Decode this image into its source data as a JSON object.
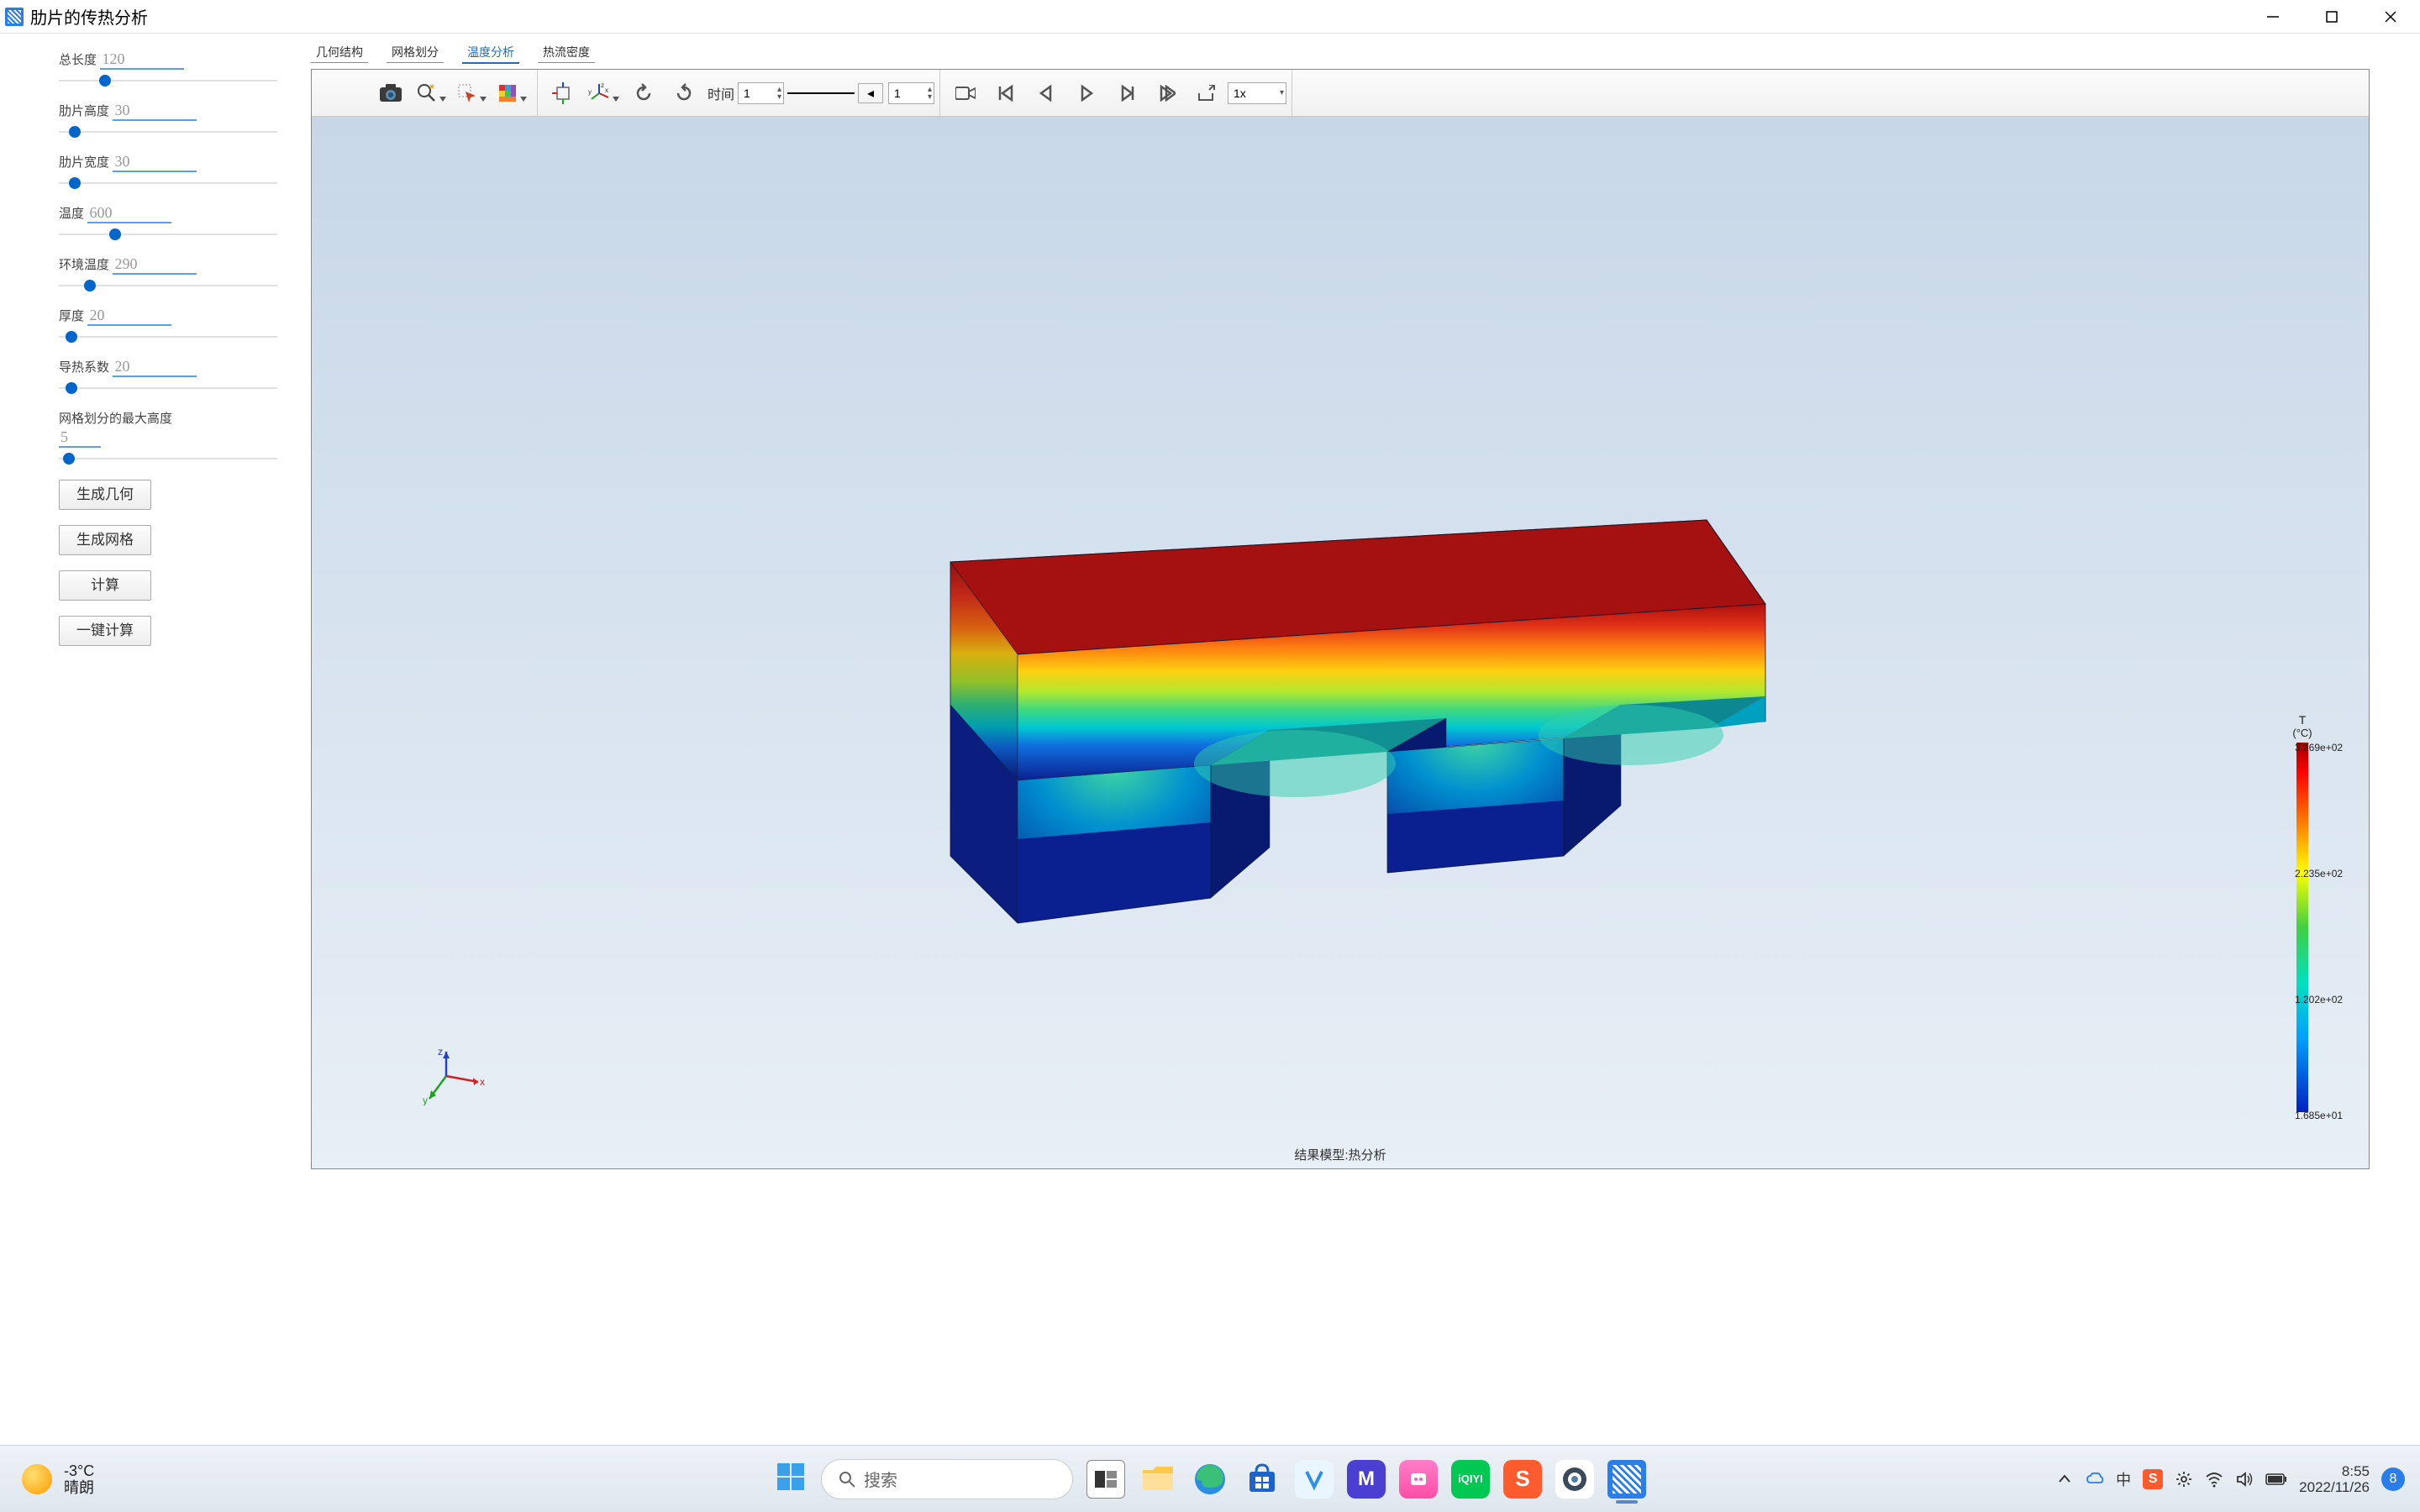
{
  "window": {
    "title": "肋片的传热分析",
    "accent": "#2b7de9"
  },
  "win_controls": {
    "min": "minimize",
    "max": "maximize",
    "close": "close"
  },
  "params": [
    {
      "label": "总长度",
      "value": "120",
      "thumb": 48
    },
    {
      "label": "肋片高度",
      "value": "30",
      "thumb": 12
    },
    {
      "label": "肋片宽度",
      "value": "30",
      "thumb": 12
    },
    {
      "label": "温度",
      "value": "600",
      "thumb": 60
    },
    {
      "label": "环境温度",
      "value": "290",
      "thumb": 30
    },
    {
      "label": "厚度",
      "value": "20",
      "thumb": 8
    },
    {
      "label": "导热系数",
      "value": "20",
      "thumb": 8
    },
    {
      "label": "网格划分的最大高度",
      "value": "5",
      "thumb": 5,
      "long": true
    }
  ],
  "buttons": {
    "gen_geometry": "生成几何",
    "gen_mesh": "生成网格",
    "compute": "计算",
    "one_click": "一键计算"
  },
  "tabs": [
    {
      "label": "几何结构",
      "active": false
    },
    {
      "label": "网格划分",
      "active": false
    },
    {
      "label": "温度分析",
      "active": true
    },
    {
      "label": "热流密度",
      "active": false
    }
  ],
  "toolbar": {
    "group_view": [
      "camera",
      "zoom-fit",
      "select",
      "color-cube"
    ],
    "group_orient": [
      "box-axes",
      "axes-xyz",
      "rotate-ccw",
      "rotate-cw"
    ],
    "time_label": "时间",
    "time_value": "1",
    "line_value": "1",
    "group_play": [
      "record",
      "skip-first",
      "frame-prev",
      "play",
      "frame-next",
      "skip-last",
      "export"
    ],
    "speed_value": "1x"
  },
  "canvas": {
    "bg_top": "#c7d7e8",
    "bg_bottom": "#e8eff6",
    "result_label": "结果模型:热分析",
    "axes": {
      "x": "x",
      "y": "y",
      "z": "z",
      "x_color": "#d02020",
      "y_color": "#20a020",
      "z_color": "#2040d0"
    }
  },
  "model": {
    "gradient_colors": [
      "#a00000",
      "#e02010",
      "#ff7000",
      "#ffd000",
      "#d0f000",
      "#60e060",
      "#00d0b0",
      "#00a0ff",
      "#1030c0",
      "#0b1a80"
    ],
    "outline": "#102040"
  },
  "legend": {
    "title": "T",
    "unit": "(°C)",
    "ticks": [
      {
        "label": "3.269e+02",
        "pos": 0
      },
      {
        "label": "2.235e+02",
        "pos": 150
      },
      {
        "label": "1.202e+02",
        "pos": 300
      },
      {
        "label": "1.685e+01",
        "pos": 438
      }
    ]
  },
  "taskbar": {
    "weather_temp": "-3°C",
    "weather_desc": "晴朗",
    "search_placeholder": "搜索",
    "apps": [
      {
        "name": "start",
        "bg": "transparent"
      },
      {
        "name": "search",
        "bg": "transparent"
      },
      {
        "name": "task-view",
        "bg": "#555"
      },
      {
        "name": "file-explorer",
        "bg": "#f4c454"
      },
      {
        "name": "edge",
        "bg": "linear-gradient(#39c277,#2a8de0)"
      },
      {
        "name": "store",
        "bg": "#1e64c8"
      },
      {
        "name": "app-v",
        "bg": "#e8f6ff"
      },
      {
        "name": "app-m",
        "bg": "#4b3fd1"
      },
      {
        "name": "app-pink",
        "bg": "#ff5eb0"
      },
      {
        "name": "iqiyi",
        "bg": "#00c853"
      },
      {
        "name": "sogou",
        "bg": "#ff5b2e"
      },
      {
        "name": "browser2",
        "bg": "#e0e5ea"
      },
      {
        "name": "current-app",
        "bg": "#2b7de9"
      }
    ],
    "tray_icons": [
      "chevron",
      "cloud",
      "ime",
      "sogou-s",
      "settings",
      "wifi",
      "volume",
      "battery"
    ],
    "ime_label": "中",
    "sogou_label": "S",
    "clock_time": "8:55",
    "clock_date": "2022/11/26",
    "notif_count": "8"
  }
}
